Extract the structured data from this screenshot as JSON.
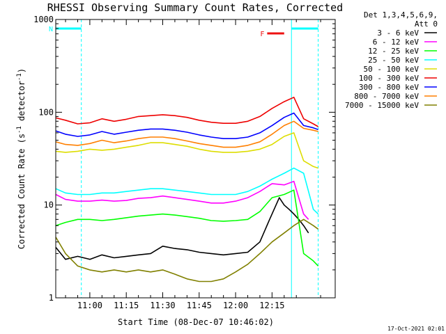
{
  "chart_data": {
    "type": "line",
    "title": "RHESSI Observing Summary Count Rates, Corrected",
    "xlabel": "Start Time (08-Dec-07 10:46:02)",
    "ylabel_main": "Corrected Count Rate (s",
    "ylabel_sup1": "-1",
    "ylabel_mid": " detector",
    "ylabel_sup2": "-1",
    "ylabel_end": ")",
    "yscale": "log",
    "ylim": [
      1,
      1000
    ],
    "xlim_minutes": [
      -14.03,
      101
    ],
    "x_ticks": [
      "11:00",
      "11:15",
      "11:30",
      "11:45",
      "12:00",
      "12:15"
    ],
    "x_tick_minutes": [
      0,
      15,
      30,
      45,
      60,
      75
    ],
    "y_ticks": [
      "1",
      "10",
      "100",
      "1000"
    ],
    "y_tick_values": [
      1,
      10,
      100,
      1000
    ],
    "legend_header": [
      "Det 1,3,4,5,6,9,",
      "Att 0"
    ],
    "flags": [
      {
        "label": "N",
        "color": "#00ffff",
        "start": -14.03,
        "end": -3.5
      },
      {
        "label": "",
        "color": "#00ffff",
        "start": 83,
        "end": 94
      },
      {
        "label": "F",
        "color": "#ee1111",
        "start": 73,
        "end": 80
      }
    ],
    "vlines": [
      -3.5,
      83,
      94
    ],
    "series": [
      {
        "name": "3 - 6 keV",
        "color": "#000000",
        "points": [
          [
            -14,
            3.5
          ],
          [
            -10,
            2.6
          ],
          [
            -5,
            2.8
          ],
          [
            0,
            2.6
          ],
          [
            5,
            2.9
          ],
          [
            10,
            2.7
          ],
          [
            15,
            2.8
          ],
          [
            20,
            2.9
          ],
          [
            25,
            3.0
          ],
          [
            30,
            3.6
          ],
          [
            35,
            3.4
          ],
          [
            40,
            3.3
          ],
          [
            45,
            3.1
          ],
          [
            50,
            3.0
          ],
          [
            55,
            2.9
          ],
          [
            60,
            3.0
          ],
          [
            65,
            3.1
          ],
          [
            70,
            4.0
          ],
          [
            74,
            7.0
          ],
          [
            78,
            12.0
          ],
          [
            80,
            10.0
          ],
          [
            82,
            9.0
          ],
          [
            84,
            8.0
          ],
          [
            86,
            7.0
          ],
          [
            88,
            6.0
          ],
          [
            90,
            5.0
          ]
        ]
      },
      {
        "name": "6 - 12 keV",
        "color": "#ff00ff",
        "points": [
          [
            -14,
            13
          ],
          [
            -10,
            11.5
          ],
          [
            -5,
            11.0
          ],
          [
            0,
            11.0
          ],
          [
            5,
            11.3
          ],
          [
            10,
            11.0
          ],
          [
            15,
            11.2
          ],
          [
            20,
            11.8
          ],
          [
            25,
            12.0
          ],
          [
            30,
            12.5
          ],
          [
            35,
            12.0
          ],
          [
            40,
            11.5
          ],
          [
            45,
            11.0
          ],
          [
            50,
            10.5
          ],
          [
            55,
            10.5
          ],
          [
            60,
            11.0
          ],
          [
            65,
            12.0
          ],
          [
            70,
            14.0
          ],
          [
            75,
            17.0
          ],
          [
            80,
            16.5
          ],
          [
            84,
            18.0
          ],
          [
            88,
            8.0
          ],
          [
            90,
            7.0
          ]
        ]
      },
      {
        "name": "12 - 25 keV",
        "color": "#00ff00",
        "points": [
          [
            -14,
            6.0
          ],
          [
            -10,
            6.5
          ],
          [
            -5,
            7.0
          ],
          [
            0,
            7.0
          ],
          [
            5,
            6.8
          ],
          [
            10,
            7.0
          ],
          [
            15,
            7.3
          ],
          [
            20,
            7.6
          ],
          [
            25,
            7.8
          ],
          [
            30,
            8.0
          ],
          [
            35,
            7.8
          ],
          [
            40,
            7.5
          ],
          [
            45,
            7.2
          ],
          [
            50,
            6.8
          ],
          [
            55,
            6.7
          ],
          [
            60,
            6.8
          ],
          [
            65,
            7.0
          ],
          [
            70,
            8.5
          ],
          [
            75,
            12.0
          ],
          [
            80,
            13.0
          ],
          [
            84,
            14.5
          ],
          [
            88,
            3.0
          ],
          [
            92,
            2.5
          ],
          [
            94,
            2.2
          ]
        ]
      },
      {
        "name": "25 - 50 keV",
        "color": "#00ffff",
        "points": [
          [
            -14,
            15.0
          ],
          [
            -10,
            13.5
          ],
          [
            -5,
            13.0
          ],
          [
            0,
            13.0
          ],
          [
            5,
            13.5
          ],
          [
            10,
            13.5
          ],
          [
            15,
            14.0
          ],
          [
            20,
            14.5
          ],
          [
            25,
            15.0
          ],
          [
            30,
            15.0
          ],
          [
            35,
            14.5
          ],
          [
            40,
            14.0
          ],
          [
            45,
            13.5
          ],
          [
            50,
            13.0
          ],
          [
            55,
            13.0
          ],
          [
            60,
            13.0
          ],
          [
            65,
            14.0
          ],
          [
            70,
            16.0
          ],
          [
            75,
            19.0
          ],
          [
            80,
            22.0
          ],
          [
            84,
            25.0
          ],
          [
            88,
            22.0
          ],
          [
            92,
            9.0
          ],
          [
            94,
            8.0
          ]
        ]
      },
      {
        "name": "50 - 100 keV",
        "color": "#dddd00",
        "points": [
          [
            -14,
            38.0
          ],
          [
            -10,
            37.0
          ],
          [
            -5,
            38.0
          ],
          [
            0,
            40.0
          ],
          [
            5,
            39.0
          ],
          [
            10,
            40.0
          ],
          [
            15,
            42.0
          ],
          [
            20,
            44.0
          ],
          [
            25,
            47.0
          ],
          [
            30,
            47.0
          ],
          [
            35,
            45.0
          ],
          [
            40,
            43.0
          ],
          [
            45,
            40.0
          ],
          [
            50,
            38.0
          ],
          [
            55,
            37.0
          ],
          [
            60,
            37.0
          ],
          [
            65,
            38.0
          ],
          [
            70,
            40.0
          ],
          [
            75,
            45.0
          ],
          [
            80,
            55.0
          ],
          [
            84,
            60.0
          ],
          [
            88,
            30.0
          ],
          [
            92,
            26.0
          ],
          [
            94,
            25.0
          ]
        ]
      },
      {
        "name": "100 - 300 keV",
        "color": "#ee0000",
        "points": [
          [
            -14,
            87.0
          ],
          [
            -10,
            82.0
          ],
          [
            -5,
            75.0
          ],
          [
            0,
            77.0
          ],
          [
            5,
            85.0
          ],
          [
            10,
            80.0
          ],
          [
            15,
            84.0
          ],
          [
            20,
            90.0
          ],
          [
            25,
            92.0
          ],
          [
            30,
            94.0
          ],
          [
            35,
            92.0
          ],
          [
            40,
            88.0
          ],
          [
            45,
            82.0
          ],
          [
            50,
            78.0
          ],
          [
            55,
            76.0
          ],
          [
            60,
            76.0
          ],
          [
            65,
            80.0
          ],
          [
            70,
            90.0
          ],
          [
            75,
            110.0
          ],
          [
            80,
            130.0
          ],
          [
            84,
            145.0
          ],
          [
            88,
            85.0
          ],
          [
            92,
            75.0
          ],
          [
            94,
            70.0
          ]
        ]
      },
      {
        "name": "300 - 800 keV",
        "color": "#0000ff",
        "points": [
          [
            -14,
            63.0
          ],
          [
            -10,
            58.0
          ],
          [
            -5,
            55.0
          ],
          [
            0,
            57.0
          ],
          [
            5,
            62.0
          ],
          [
            10,
            58.0
          ],
          [
            15,
            61.0
          ],
          [
            20,
            64.0
          ],
          [
            25,
            66.0
          ],
          [
            30,
            66.0
          ],
          [
            35,
            64.0
          ],
          [
            40,
            61.0
          ],
          [
            45,
            57.0
          ],
          [
            50,
            54.0
          ],
          [
            55,
            52.0
          ],
          [
            60,
            52.0
          ],
          [
            65,
            54.0
          ],
          [
            70,
            60.0
          ],
          [
            75,
            72.0
          ],
          [
            80,
            88.0
          ],
          [
            84,
            98.0
          ],
          [
            88,
            72.0
          ],
          [
            92,
            68.0
          ],
          [
            94,
            65.0
          ]
        ]
      },
      {
        "name": "800 - 7000 keV",
        "color": "#ff7f00",
        "points": [
          [
            -14,
            48.0
          ],
          [
            -10,
            45.0
          ],
          [
            -5,
            44.0
          ],
          [
            0,
            46.0
          ],
          [
            5,
            50.0
          ],
          [
            10,
            47.0
          ],
          [
            15,
            49.0
          ],
          [
            20,
            52.0
          ],
          [
            25,
            54.0
          ],
          [
            30,
            54.0
          ],
          [
            35,
            52.0
          ],
          [
            40,
            49.0
          ],
          [
            45,
            46.0
          ],
          [
            50,
            44.0
          ],
          [
            55,
            42.0
          ],
          [
            60,
            42.0
          ],
          [
            65,
            44.0
          ],
          [
            70,
            48.0
          ],
          [
            75,
            58.0
          ],
          [
            80,
            72.0
          ],
          [
            84,
            80.0
          ],
          [
            88,
            67.0
          ],
          [
            92,
            64.0
          ],
          [
            94,
            62.0
          ]
        ]
      },
      {
        "name": "7000 - 15000 keV",
        "color": "#808000",
        "points": [
          [
            -14,
            4.5
          ],
          [
            -10,
            3.0
          ],
          [
            -5,
            2.2
          ],
          [
            0,
            2.0
          ],
          [
            5,
            1.9
          ],
          [
            10,
            2.0
          ],
          [
            15,
            1.9
          ],
          [
            20,
            2.0
          ],
          [
            25,
            1.9
          ],
          [
            30,
            2.0
          ],
          [
            35,
            1.8
          ],
          [
            40,
            1.6
          ],
          [
            45,
            1.5
          ],
          [
            50,
            1.5
          ],
          [
            55,
            1.6
          ],
          [
            60,
            1.9
          ],
          [
            65,
            2.3
          ],
          [
            70,
            3.0
          ],
          [
            75,
            4.0
          ],
          [
            80,
            5.0
          ],
          [
            84,
            6.0
          ],
          [
            88,
            7.0
          ],
          [
            92,
            6.0
          ],
          [
            94,
            5.5
          ]
        ]
      }
    ]
  },
  "footer_timestamp": "17-Oct-2021 02:01"
}
